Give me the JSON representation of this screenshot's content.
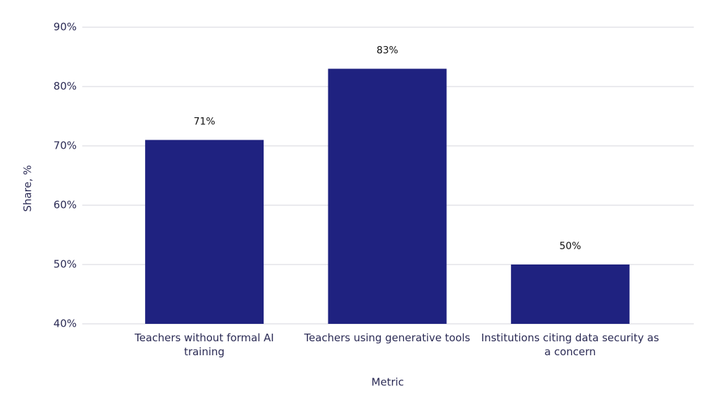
{
  "chart_data": {
    "type": "bar",
    "x_label": "Metric",
    "y_label": "Share, %",
    "categories": [
      "Teachers without formal AI training",
      "Teachers using generative tools",
      "Institutions citing data security as a concern"
    ],
    "values": [
      71,
      83,
      50
    ],
    "value_labels": [
      "71%",
      "83%",
      "50%"
    ],
    "color": "#1f2280",
    "ylim": [
      40,
      90
    ],
    "yticks": [
      {
        "value": 40,
        "label": "40%"
      },
      {
        "value": 50,
        "label": "50%"
      },
      {
        "value": 60,
        "label": "60%"
      },
      {
        "value": 70,
        "label": "70%"
      },
      {
        "value": 80,
        "label": "80%"
      },
      {
        "value": 90,
        "label": "90%"
      }
    ],
    "grid": true
  }
}
